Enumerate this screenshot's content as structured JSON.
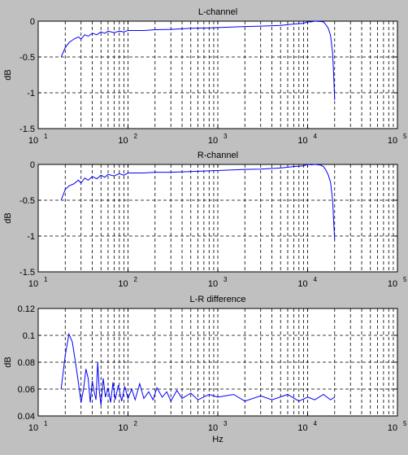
{
  "figure": {
    "background": "#c0c0c0"
  },
  "chart_data": [
    {
      "type": "line",
      "title": "L-channel",
      "xlabel": "",
      "ylabel": "dB",
      "x_scale": "log",
      "xlim": [
        10,
        100000
      ],
      "ylim": [
        -1.5,
        0
      ],
      "x_ticks": [
        10,
        100,
        1000,
        10000,
        100000
      ],
      "x_tick_labels": [
        [
          "10",
          "1"
        ],
        [
          "10",
          "2"
        ],
        [
          "10",
          "3"
        ],
        [
          "10",
          "4"
        ],
        [
          "10",
          "5"
        ]
      ],
      "y_ticks": [
        -1.5,
        -1,
        -0.5,
        0
      ],
      "y_tick_labels": [
        "-1.5",
        "-1",
        "-0.5",
        "0"
      ],
      "grid": "dashed",
      "line_color": "#0000ff",
      "series": [
        {
          "x": [
            18,
            20,
            22,
            25,
            28,
            30,
            33,
            36,
            40,
            45,
            50,
            55,
            60,
            70,
            80,
            90,
            100,
            150,
            200,
            300,
            500,
            800,
            1000,
            2000,
            3000,
            5000,
            7000,
            9000,
            10000,
            11000,
            12000,
            14000,
            15000,
            16000,
            17000,
            18000,
            19000,
            19500,
            20000
          ],
          "y": [
            -0.5,
            -0.37,
            -0.3,
            -0.25,
            -0.22,
            -0.25,
            -0.19,
            -0.21,
            -0.17,
            -0.19,
            -0.15,
            -0.17,
            -0.14,
            -0.16,
            -0.14,
            -0.15,
            -0.13,
            -0.13,
            -0.12,
            -0.115,
            -0.1,
            -0.095,
            -0.09,
            -0.075,
            -0.07,
            -0.06,
            -0.04,
            -0.03,
            -0.01,
            -0.01,
            0,
            -0.005,
            -0.01,
            -0.05,
            -0.1,
            -0.2,
            -0.45,
            -0.75,
            -1.1
          ]
        }
      ]
    },
    {
      "type": "line",
      "title": "R-channel",
      "xlabel": "",
      "ylabel": "dB",
      "x_scale": "log",
      "xlim": [
        10,
        100000
      ],
      "ylim": [
        -1.5,
        0
      ],
      "x_ticks": [
        10,
        100,
        1000,
        10000,
        100000
      ],
      "x_tick_labels": [
        [
          "10",
          "1"
        ],
        [
          "10",
          "2"
        ],
        [
          "10",
          "3"
        ],
        [
          "10",
          "4"
        ],
        [
          "10",
          "5"
        ]
      ],
      "y_ticks": [
        -1.5,
        -1,
        -0.5,
        0
      ],
      "y_tick_labels": [
        "-1.5",
        "-1",
        "-0.5",
        "0"
      ],
      "grid": "dashed",
      "line_color": "#0000ff",
      "series": [
        {
          "x": [
            18,
            20,
            22,
            25,
            28,
            30,
            33,
            36,
            40,
            45,
            50,
            55,
            60,
            70,
            80,
            90,
            100,
            150,
            200,
            300,
            500,
            800,
            1000,
            2000,
            3000,
            5000,
            7000,
            9000,
            10000,
            11000,
            12000,
            14000,
            15000,
            16000,
            17000,
            18000,
            19000,
            19500,
            20000
          ],
          "y": [
            -0.5,
            -0.35,
            -0.3,
            -0.27,
            -0.22,
            -0.26,
            -0.19,
            -0.22,
            -0.17,
            -0.2,
            -0.15,
            -0.18,
            -0.14,
            -0.16,
            -0.13,
            -0.15,
            -0.12,
            -0.12,
            -0.11,
            -0.11,
            -0.1,
            -0.09,
            -0.085,
            -0.07,
            -0.065,
            -0.05,
            -0.03,
            -0.02,
            0,
            -0.005,
            0,
            -0.01,
            -0.03,
            -0.08,
            -0.15,
            -0.25,
            -0.5,
            -0.8,
            -1.05
          ]
        }
      ]
    },
    {
      "type": "line",
      "title": "L-R difference",
      "xlabel": "Hz",
      "ylabel": "dB",
      "x_scale": "log",
      "xlim": [
        10,
        100000
      ],
      "ylim": [
        0.04,
        0.12
      ],
      "x_ticks": [
        10,
        100,
        1000,
        10000,
        100000
      ],
      "x_tick_labels": [
        [
          "10",
          "1"
        ],
        [
          "10",
          "2"
        ],
        [
          "10",
          "3"
        ],
        [
          "10",
          "4"
        ],
        [
          "10",
          "5"
        ]
      ],
      "y_ticks": [
        0.04,
        0.06,
        0.08,
        0.1,
        0.12
      ],
      "y_tick_labels": [
        "0.04",
        "0.06",
        "0.08",
        "0.1",
        "0.12"
      ],
      "grid": "dashed",
      "line_color": "#0000ff",
      "series": [
        {
          "x": [
            18,
            20,
            22,
            24,
            26,
            28,
            30,
            32,
            34,
            36,
            38,
            40,
            42,
            44,
            46,
            48,
            50,
            53,
            56,
            60,
            64,
            68,
            72,
            78,
            85,
            92,
            100,
            110,
            120,
            135,
            150,
            170,
            190,
            210,
            240,
            270,
            300,
            350,
            400,
            500,
            600,
            800,
            1000,
            1500,
            2000,
            3000,
            4000,
            6000,
            8000,
            10000,
            12000,
            15000,
            18000,
            20000
          ],
          "y": [
            0.06,
            0.085,
            0.101,
            0.095,
            0.08,
            0.065,
            0.05,
            0.06,
            0.075,
            0.068,
            0.05,
            0.066,
            0.058,
            0.052,
            0.08,
            0.058,
            0.048,
            0.068,
            0.054,
            0.061,
            0.05,
            0.065,
            0.052,
            0.063,
            0.051,
            0.062,
            0.053,
            0.06,
            0.052,
            0.064,
            0.053,
            0.058,
            0.052,
            0.061,
            0.054,
            0.058,
            0.051,
            0.059,
            0.053,
            0.057,
            0.052,
            0.056,
            0.054,
            0.056,
            0.051,
            0.055,
            0.052,
            0.056,
            0.051,
            0.054,
            0.052,
            0.056,
            0.052,
            0.054
          ]
        }
      ]
    }
  ]
}
